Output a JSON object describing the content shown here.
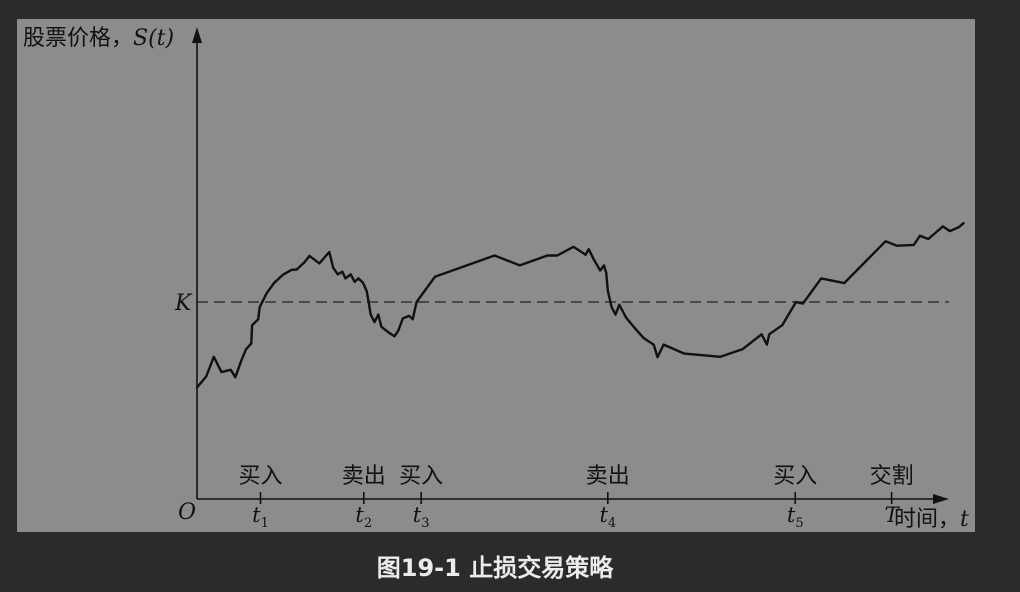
{
  "caption": "图19-1 止损交易策略",
  "chart_data": {
    "type": "line",
    "title": "",
    "ylabel_text": "股票价格，",
    "ylabel_var": "S",
    "ylabel_arg": "(t)",
    "xlabel_text": "时间，",
    "xlabel_var": "t",
    "origin_label": "O",
    "strike": {
      "label": "K",
      "value": 0.5
    },
    "xlim": [
      0,
      1
    ],
    "ylim": [
      0,
      1
    ],
    "grid": false,
    "x_ticks": [
      {
        "var": "t",
        "sub": "1",
        "x": 0.083,
        "action": "买入"
      },
      {
        "var": "t",
        "sub": "2",
        "x": 0.218,
        "action": "卖出"
      },
      {
        "var": "t",
        "sub": "3",
        "x": 0.293,
        "action": "买入"
      },
      {
        "var": "t",
        "sub": "4",
        "x": 0.537,
        "action": "卖出"
      },
      {
        "var": "t",
        "sub": "5",
        "x": 0.782,
        "action": "买入"
      },
      {
        "var": "T",
        "sub": "",
        "x": 0.908,
        "action": "交割"
      }
    ],
    "series": [
      {
        "values": [
          [
            0.0,
            0.283
          ],
          [
            0.012,
            0.311
          ],
          [
            0.022,
            0.361
          ],
          [
            0.032,
            0.322
          ],
          [
            0.044,
            0.328
          ],
          [
            0.05,
            0.309
          ],
          [
            0.058,
            0.352
          ],
          [
            0.064,
            0.38
          ],
          [
            0.071,
            0.395
          ],
          [
            0.072,
            0.441
          ],
          [
            0.08,
            0.456
          ],
          [
            0.082,
            0.487
          ],
          [
            0.091,
            0.522
          ],
          [
            0.101,
            0.549
          ],
          [
            0.113,
            0.57
          ],
          [
            0.124,
            0.582
          ],
          [
            0.13,
            0.582
          ],
          [
            0.14,
            0.6
          ],
          [
            0.147,
            0.617
          ],
          [
            0.16,
            0.598
          ],
          [
            0.173,
            0.627
          ],
          [
            0.178,
            0.587
          ],
          [
            0.184,
            0.57
          ],
          [
            0.19,
            0.577
          ],
          [
            0.194,
            0.56
          ],
          [
            0.201,
            0.57
          ],
          [
            0.206,
            0.551
          ],
          [
            0.211,
            0.56
          ],
          [
            0.217,
            0.549
          ],
          [
            0.222,
            0.527
          ],
          [
            0.227,
            0.468
          ],
          [
            0.232,
            0.449
          ],
          [
            0.237,
            0.468
          ],
          [
            0.241,
            0.437
          ],
          [
            0.249,
            0.425
          ],
          [
            0.258,
            0.413
          ],
          [
            0.263,
            0.427
          ],
          [
            0.269,
            0.458
          ],
          [
            0.277,
            0.465
          ],
          [
            0.282,
            0.456
          ],
          [
            0.287,
            0.5
          ],
          [
            0.311,
            0.564
          ],
          [
            0.389,
            0.618
          ],
          [
            0.422,
            0.593
          ],
          [
            0.458,
            0.618
          ],
          [
            0.471,
            0.618
          ],
          [
            0.492,
            0.64
          ],
          [
            0.508,
            0.62
          ],
          [
            0.512,
            0.634
          ],
          [
            0.519,
            0.607
          ],
          [
            0.527,
            0.58
          ],
          [
            0.532,
            0.593
          ],
          [
            0.535,
            0.573
          ],
          [
            0.537,
            0.529
          ],
          [
            0.542,
            0.487
          ],
          [
            0.547,
            0.468
          ],
          [
            0.552,
            0.493
          ],
          [
            0.561,
            0.46
          ],
          [
            0.574,
            0.43
          ],
          [
            0.584,
            0.408
          ],
          [
            0.597,
            0.392
          ],
          [
            0.602,
            0.36
          ],
          [
            0.61,
            0.392
          ],
          [
            0.637,
            0.369
          ],
          [
            0.684,
            0.361
          ],
          [
            0.713,
            0.38
          ],
          [
            0.738,
            0.418
          ],
          [
            0.745,
            0.392
          ],
          [
            0.748,
            0.418
          ],
          [
            0.765,
            0.441
          ],
          [
            0.783,
            0.5
          ],
          [
            0.792,
            0.496
          ],
          [
            0.816,
            0.56
          ],
          [
            0.846,
            0.548
          ],
          [
            0.9,
            0.654
          ],
          [
            0.915,
            0.643
          ],
          [
            0.937,
            0.645
          ],
          [
            0.945,
            0.668
          ],
          [
            0.956,
            0.66
          ],
          [
            0.975,
            0.692
          ],
          [
            0.984,
            0.68
          ],
          [
            0.996,
            0.69
          ],
          [
            1.002,
            0.7
          ]
        ]
      }
    ]
  }
}
